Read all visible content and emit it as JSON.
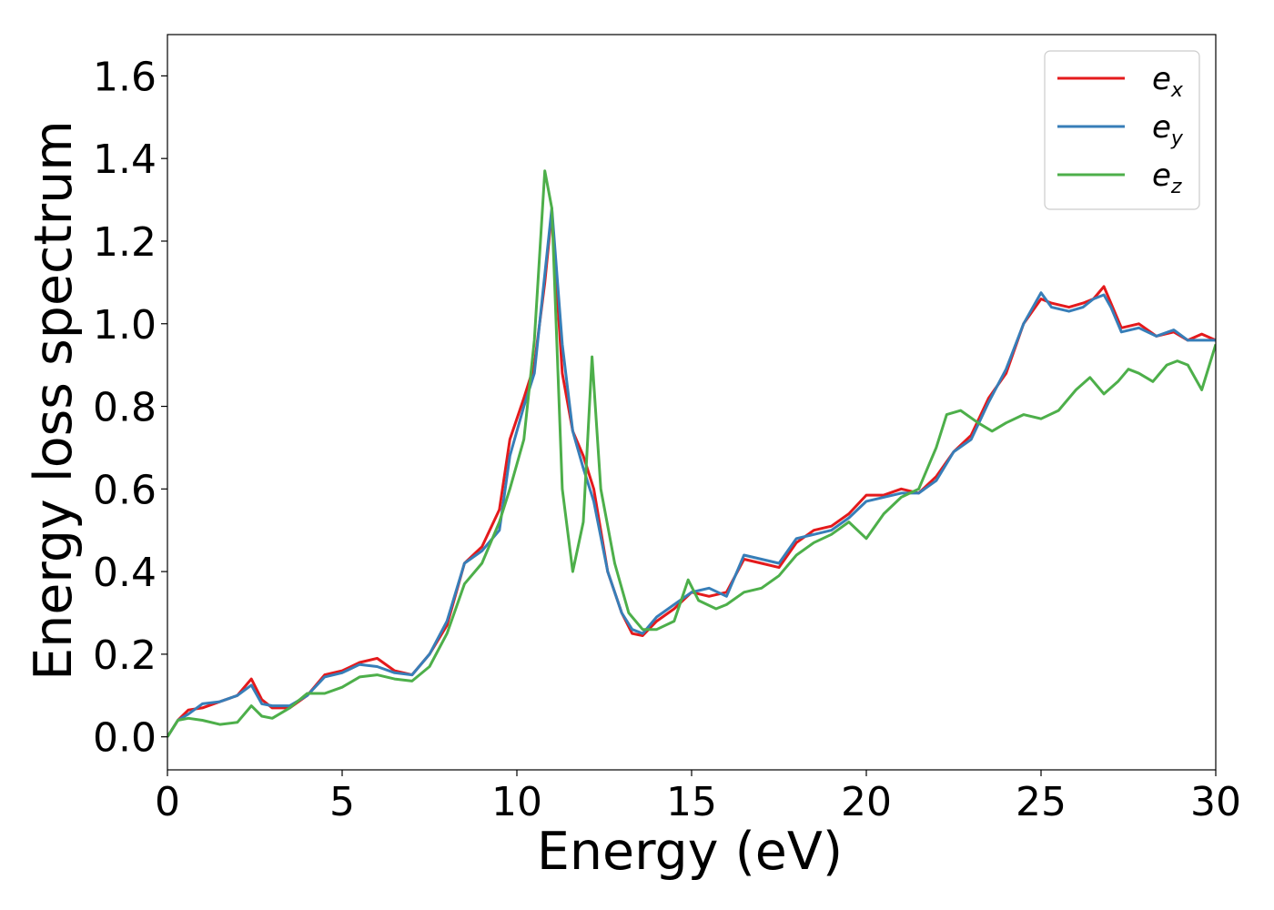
{
  "chart_data": {
    "type": "line",
    "title": "",
    "xlabel": "Energy (eV)",
    "ylabel": "Energy loss spectrum",
    "xlim": [
      0,
      30
    ],
    "ylim": [
      -0.08,
      1.7
    ],
    "xticks": [
      0,
      5,
      10,
      15,
      20,
      25,
      30
    ],
    "xtick_labels": [
      "0",
      "5",
      "10",
      "15",
      "20",
      "25",
      "30"
    ],
    "yticks": [
      0.0,
      0.2,
      0.4,
      0.6,
      0.8,
      1.0,
      1.2,
      1.4,
      1.6
    ],
    "ytick_labels": [
      "0.0",
      "0.2",
      "0.4",
      "0.6",
      "0.8",
      "1.0",
      "1.2",
      "1.4",
      "1.6"
    ],
    "grid": false,
    "legend_position": "top-right",
    "series": [
      {
        "name": "e_x",
        "legend_base": "e",
        "legend_sub": "x",
        "color": "#e41a1c",
        "points": [
          [
            0,
            0.0
          ],
          [
            0.3,
            0.04
          ],
          [
            0.6,
            0.065
          ],
          [
            1.0,
            0.07
          ],
          [
            1.5,
            0.085
          ],
          [
            2.0,
            0.1
          ],
          [
            2.4,
            0.14
          ],
          [
            2.7,
            0.09
          ],
          [
            3.0,
            0.07
          ],
          [
            3.5,
            0.07
          ],
          [
            4.0,
            0.1
          ],
          [
            4.5,
            0.15
          ],
          [
            5.0,
            0.16
          ],
          [
            5.5,
            0.18
          ],
          [
            6.0,
            0.19
          ],
          [
            6.5,
            0.16
          ],
          [
            7.0,
            0.15
          ],
          [
            7.5,
            0.2
          ],
          [
            8.0,
            0.27
          ],
          [
            8.5,
            0.42
          ],
          [
            9.0,
            0.46
          ],
          [
            9.5,
            0.55
          ],
          [
            9.8,
            0.72
          ],
          [
            10.2,
            0.82
          ],
          [
            10.5,
            0.9
          ],
          [
            10.8,
            1.1
          ],
          [
            11.0,
            1.27
          ],
          [
            11.3,
            0.88
          ],
          [
            11.6,
            0.74
          ],
          [
            11.9,
            0.68
          ],
          [
            12.2,
            0.6
          ],
          [
            12.6,
            0.4
          ],
          [
            13.0,
            0.3
          ],
          [
            13.3,
            0.25
          ],
          [
            13.6,
            0.245
          ],
          [
            14.0,
            0.28
          ],
          [
            14.5,
            0.31
          ],
          [
            15.0,
            0.35
          ],
          [
            15.5,
            0.34
          ],
          [
            16.0,
            0.35
          ],
          [
            16.5,
            0.43
          ],
          [
            17.0,
            0.42
          ],
          [
            17.5,
            0.41
          ],
          [
            18.0,
            0.47
          ],
          [
            18.5,
            0.5
          ],
          [
            19.0,
            0.51
          ],
          [
            19.5,
            0.54
          ],
          [
            20.0,
            0.585
          ],
          [
            20.5,
            0.585
          ],
          [
            21.0,
            0.6
          ],
          [
            21.5,
            0.59
          ],
          [
            22.0,
            0.63
          ],
          [
            22.5,
            0.69
          ],
          [
            23.0,
            0.73
          ],
          [
            23.5,
            0.82
          ],
          [
            24.0,
            0.88
          ],
          [
            24.5,
            1.0
          ],
          [
            25.0,
            1.06
          ],
          [
            25.3,
            1.05
          ],
          [
            25.8,
            1.04
          ],
          [
            26.2,
            1.05
          ],
          [
            26.5,
            1.06
          ],
          [
            26.8,
            1.09
          ],
          [
            27.0,
            1.05
          ],
          [
            27.3,
            0.99
          ],
          [
            27.8,
            1.0
          ],
          [
            28.3,
            0.97
          ],
          [
            28.8,
            0.98
          ],
          [
            29.2,
            0.96
          ],
          [
            29.6,
            0.975
          ],
          [
            30.0,
            0.96
          ]
        ]
      },
      {
        "name": "e_y",
        "legend_base": "e",
        "legend_sub": "y",
        "color": "#377eb8",
        "points": [
          [
            0,
            0.0
          ],
          [
            0.3,
            0.04
          ],
          [
            0.6,
            0.055
          ],
          [
            1.0,
            0.08
          ],
          [
            1.5,
            0.085
          ],
          [
            2.0,
            0.1
          ],
          [
            2.4,
            0.125
          ],
          [
            2.7,
            0.08
          ],
          [
            3.0,
            0.075
          ],
          [
            3.5,
            0.075
          ],
          [
            4.0,
            0.1
          ],
          [
            4.5,
            0.145
          ],
          [
            5.0,
            0.155
          ],
          [
            5.5,
            0.175
          ],
          [
            6.0,
            0.17
          ],
          [
            6.5,
            0.155
          ],
          [
            7.0,
            0.15
          ],
          [
            7.5,
            0.2
          ],
          [
            8.0,
            0.28
          ],
          [
            8.5,
            0.42
          ],
          [
            9.0,
            0.45
          ],
          [
            9.5,
            0.5
          ],
          [
            9.8,
            0.68
          ],
          [
            10.2,
            0.8
          ],
          [
            10.5,
            0.88
          ],
          [
            10.8,
            1.12
          ],
          [
            11.0,
            1.28
          ],
          [
            11.3,
            0.95
          ],
          [
            11.6,
            0.74
          ],
          [
            11.9,
            0.65
          ],
          [
            12.2,
            0.57
          ],
          [
            12.6,
            0.4
          ],
          [
            13.0,
            0.3
          ],
          [
            13.3,
            0.26
          ],
          [
            13.6,
            0.25
          ],
          [
            14.0,
            0.29
          ],
          [
            14.5,
            0.32
          ],
          [
            15.0,
            0.35
          ],
          [
            15.5,
            0.36
          ],
          [
            16.0,
            0.34
          ],
          [
            16.5,
            0.44
          ],
          [
            17.0,
            0.43
          ],
          [
            17.5,
            0.42
          ],
          [
            18.0,
            0.48
          ],
          [
            18.5,
            0.49
          ],
          [
            19.0,
            0.5
          ],
          [
            19.5,
            0.53
          ],
          [
            20.0,
            0.57
          ],
          [
            20.5,
            0.58
          ],
          [
            21.0,
            0.59
          ],
          [
            21.5,
            0.59
          ],
          [
            22.0,
            0.62
          ],
          [
            22.5,
            0.69
          ],
          [
            23.0,
            0.72
          ],
          [
            23.5,
            0.81
          ],
          [
            24.0,
            0.89
          ],
          [
            24.5,
            1.0
          ],
          [
            25.0,
            1.075
          ],
          [
            25.3,
            1.04
          ],
          [
            25.8,
            1.03
          ],
          [
            26.2,
            1.04
          ],
          [
            26.5,
            1.06
          ],
          [
            26.8,
            1.07
          ],
          [
            27.0,
            1.04
          ],
          [
            27.3,
            0.98
          ],
          [
            27.8,
            0.99
          ],
          [
            28.3,
            0.97
          ],
          [
            28.8,
            0.985
          ],
          [
            29.2,
            0.96
          ],
          [
            29.6,
            0.96
          ],
          [
            30.0,
            0.96
          ]
        ]
      },
      {
        "name": "e_z",
        "legend_base": "e",
        "legend_sub": "z",
        "color": "#4daf4a",
        "points": [
          [
            0,
            0.0
          ],
          [
            0.3,
            0.04
          ],
          [
            0.6,
            0.045
          ],
          [
            1.0,
            0.04
          ],
          [
            1.5,
            0.03
          ],
          [
            2.0,
            0.035
          ],
          [
            2.4,
            0.075
          ],
          [
            2.7,
            0.05
          ],
          [
            3.0,
            0.045
          ],
          [
            3.5,
            0.07
          ],
          [
            4.0,
            0.105
          ],
          [
            4.5,
            0.105
          ],
          [
            5.0,
            0.12
          ],
          [
            5.5,
            0.145
          ],
          [
            6.0,
            0.15
          ],
          [
            6.5,
            0.14
          ],
          [
            7.0,
            0.135
          ],
          [
            7.5,
            0.17
          ],
          [
            8.0,
            0.25
          ],
          [
            8.5,
            0.37
          ],
          [
            9.0,
            0.42
          ],
          [
            9.5,
            0.52
          ],
          [
            9.8,
            0.6
          ],
          [
            10.2,
            0.72
          ],
          [
            10.5,
            0.96
          ],
          [
            10.8,
            1.37
          ],
          [
            11.0,
            1.28
          ],
          [
            11.3,
            0.6
          ],
          [
            11.6,
            0.4
          ],
          [
            11.9,
            0.52
          ],
          [
            12.15,
            0.92
          ],
          [
            12.4,
            0.6
          ],
          [
            12.8,
            0.42
          ],
          [
            13.2,
            0.3
          ],
          [
            13.6,
            0.26
          ],
          [
            14.0,
            0.26
          ],
          [
            14.5,
            0.28
          ],
          [
            14.9,
            0.38
          ],
          [
            15.2,
            0.33
          ],
          [
            15.7,
            0.31
          ],
          [
            16.0,
            0.32
          ],
          [
            16.5,
            0.35
          ],
          [
            17.0,
            0.36
          ],
          [
            17.5,
            0.39
          ],
          [
            18.0,
            0.44
          ],
          [
            18.5,
            0.47
          ],
          [
            19.0,
            0.49
          ],
          [
            19.5,
            0.52
          ],
          [
            20.0,
            0.48
          ],
          [
            20.5,
            0.54
          ],
          [
            21.0,
            0.58
          ],
          [
            21.5,
            0.6
          ],
          [
            22.0,
            0.7
          ],
          [
            22.3,
            0.78
          ],
          [
            22.7,
            0.79
          ],
          [
            23.2,
            0.76
          ],
          [
            23.6,
            0.74
          ],
          [
            24.0,
            0.76
          ],
          [
            24.5,
            0.78
          ],
          [
            25.0,
            0.77
          ],
          [
            25.5,
            0.79
          ],
          [
            26.0,
            0.84
          ],
          [
            26.4,
            0.87
          ],
          [
            26.8,
            0.83
          ],
          [
            27.2,
            0.86
          ],
          [
            27.5,
            0.89
          ],
          [
            27.8,
            0.88
          ],
          [
            28.2,
            0.86
          ],
          [
            28.6,
            0.9
          ],
          [
            28.9,
            0.91
          ],
          [
            29.2,
            0.9
          ],
          [
            29.6,
            0.84
          ],
          [
            30.0,
            0.95
          ]
        ]
      }
    ]
  }
}
